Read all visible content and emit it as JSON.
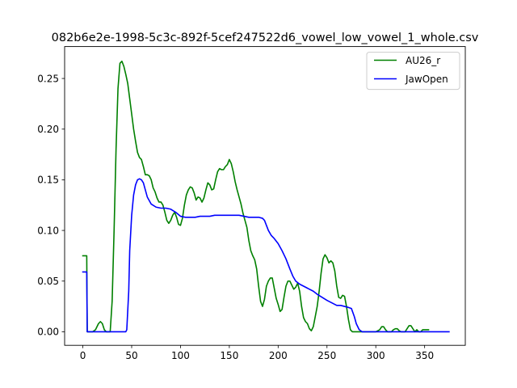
{
  "chart_data": {
    "type": "line",
    "title": "082b6e2e-1998-5c3c-892f-5cef247522d6_vowel_low_vowel_1_whole.csv",
    "xlabel": "",
    "ylabel": "",
    "xlim": [
      -18.65,
      391.65
    ],
    "ylim": [
      -0.0134,
      0.2815
    ],
    "xticks": [
      0,
      50,
      100,
      150,
      200,
      250,
      300,
      350
    ],
    "yticks": [
      0.0,
      0.05,
      0.1,
      0.15,
      0.2,
      0.25
    ],
    "ytick_labels": [
      "0.00",
      "0.05",
      "0.10",
      "0.15",
      "0.20",
      "0.25"
    ],
    "grid": false,
    "legend_position": "top-right",
    "series": [
      {
        "name": "AU26_r",
        "color": "#008000",
        "points": [
          [
            0,
            0.075
          ],
          [
            4,
            0.075
          ],
          [
            4.5,
            0.0
          ],
          [
            10,
            0.0
          ],
          [
            13,
            0.002
          ],
          [
            16,
            0.008
          ],
          [
            18,
            0.01
          ],
          [
            20,
            0.008
          ],
          [
            22,
            0.002
          ],
          [
            24,
            0.0
          ],
          [
            28,
            0.0
          ],
          [
            30,
            0.03
          ],
          [
            32,
            0.1
          ],
          [
            34,
            0.18
          ],
          [
            36,
            0.24
          ],
          [
            38,
            0.265
          ],
          [
            40,
            0.267
          ],
          [
            42,
            0.262
          ],
          [
            44,
            0.254
          ],
          [
            46,
            0.245
          ],
          [
            48,
            0.23
          ],
          [
            50,
            0.215
          ],
          [
            52,
            0.2
          ],
          [
            54,
            0.188
          ],
          [
            56,
            0.177
          ],
          [
            58,
            0.172
          ],
          [
            60,
            0.17
          ],
          [
            62,
            0.163
          ],
          [
            64,
            0.155
          ],
          [
            66,
            0.155
          ],
          [
            68,
            0.154
          ],
          [
            70,
            0.15
          ],
          [
            72,
            0.142
          ],
          [
            74,
            0.138
          ],
          [
            76,
            0.132
          ],
          [
            78,
            0.128
          ],
          [
            80,
            0.128
          ],
          [
            82,
            0.125
          ],
          [
            84,
            0.118
          ],
          [
            86,
            0.11
          ],
          [
            88,
            0.107
          ],
          [
            90,
            0.11
          ],
          [
            92,
            0.115
          ],
          [
            94,
            0.118
          ],
          [
            96,
            0.113
          ],
          [
            98,
            0.106
          ],
          [
            100,
            0.105
          ],
          [
            102,
            0.112
          ],
          [
            104,
            0.125
          ],
          [
            106,
            0.135
          ],
          [
            108,
            0.14
          ],
          [
            110,
            0.143
          ],
          [
            112,
            0.142
          ],
          [
            114,
            0.137
          ],
          [
            116,
            0.13
          ],
          [
            118,
            0.133
          ],
          [
            120,
            0.132
          ],
          [
            122,
            0.128
          ],
          [
            124,
            0.132
          ],
          [
            126,
            0.14
          ],
          [
            128,
            0.147
          ],
          [
            130,
            0.145
          ],
          [
            132,
            0.14
          ],
          [
            134,
            0.141
          ],
          [
            136,
            0.15
          ],
          [
            138,
            0.158
          ],
          [
            140,
            0.161
          ],
          [
            142,
            0.16
          ],
          [
            144,
            0.16
          ],
          [
            146,
            0.163
          ],
          [
            148,
            0.165
          ],
          [
            150,
            0.17
          ],
          [
            152,
            0.166
          ],
          [
            154,
            0.158
          ],
          [
            156,
            0.148
          ],
          [
            158,
            0.14
          ],
          [
            160,
            0.133
          ],
          [
            162,
            0.126
          ],
          [
            164,
            0.117
          ],
          [
            166,
            0.11
          ],
          [
            168,
            0.103
          ],
          [
            170,
            0.09
          ],
          [
            172,
            0.08
          ],
          [
            174,
            0.075
          ],
          [
            176,
            0.071
          ],
          [
            178,
            0.062
          ],
          [
            180,
            0.045
          ],
          [
            182,
            0.03
          ],
          [
            184,
            0.025
          ],
          [
            186,
            0.032
          ],
          [
            188,
            0.045
          ],
          [
            190,
            0.05
          ],
          [
            192,
            0.053
          ],
          [
            194,
            0.053
          ],
          [
            196,
            0.043
          ],
          [
            198,
            0.033
          ],
          [
            200,
            0.027
          ],
          [
            202,
            0.02
          ],
          [
            204,
            0.022
          ],
          [
            206,
            0.034
          ],
          [
            208,
            0.045
          ],
          [
            210,
            0.05
          ],
          [
            212,
            0.05
          ],
          [
            214,
            0.046
          ],
          [
            216,
            0.042
          ],
          [
            218,
            0.044
          ],
          [
            220,
            0.048
          ],
          [
            222,
            0.04
          ],
          [
            224,
            0.025
          ],
          [
            226,
            0.014
          ],
          [
            228,
            0.01
          ],
          [
            230,
            0.008
          ],
          [
            232,
            0.003
          ],
          [
            234,
            0.001
          ],
          [
            236,
            0.005
          ],
          [
            238,
            0.015
          ],
          [
            240,
            0.025
          ],
          [
            242,
            0.04
          ],
          [
            244,
            0.058
          ],
          [
            246,
            0.072
          ],
          [
            248,
            0.076
          ],
          [
            250,
            0.073
          ],
          [
            252,
            0.068
          ],
          [
            254,
            0.07
          ],
          [
            256,
            0.068
          ],
          [
            258,
            0.06
          ],
          [
            260,
            0.045
          ],
          [
            262,
            0.034
          ],
          [
            264,
            0.033
          ],
          [
            266,
            0.036
          ],
          [
            268,
            0.035
          ],
          [
            270,
            0.025
          ],
          [
            272,
            0.012
          ],
          [
            274,
            0.002
          ],
          [
            276,
            0.0
          ],
          [
            300,
            0.0
          ],
          [
            304,
            0.002
          ],
          [
            306,
            0.005
          ],
          [
            308,
            0.005
          ],
          [
            310,
            0.002
          ],
          [
            312,
            0.0
          ],
          [
            316,
            0.0
          ],
          [
            318,
            0.002
          ],
          [
            320,
            0.003
          ],
          [
            322,
            0.003
          ],
          [
            324,
            0.001
          ],
          [
            326,
            0.0
          ],
          [
            330,
            0.0
          ],
          [
            332,
            0.003
          ],
          [
            334,
            0.006
          ],
          [
            336,
            0.006
          ],
          [
            338,
            0.003
          ],
          [
            340,
            0.0
          ],
          [
            342,
            0.002
          ],
          [
            344,
            0.0
          ],
          [
            346,
            0.0
          ],
          [
            348,
            0.002
          ],
          [
            350,
            0.002
          ],
          [
            354,
            0.002
          ]
        ]
      },
      {
        "name": "JawOpen",
        "color": "#0000ff",
        "points": [
          [
            0,
            0.059
          ],
          [
            4,
            0.059
          ],
          [
            4.5,
            0.0
          ],
          [
            44,
            0.0
          ],
          [
            45,
            0.002
          ],
          [
            47,
            0.04
          ],
          [
            48,
            0.08
          ],
          [
            50,
            0.115
          ],
          [
            52,
            0.135
          ],
          [
            54,
            0.145
          ],
          [
            56,
            0.15
          ],
          [
            58,
            0.151
          ],
          [
            60,
            0.15
          ],
          [
            62,
            0.147
          ],
          [
            64,
            0.14
          ],
          [
            66,
            0.133
          ],
          [
            70,
            0.126
          ],
          [
            75,
            0.123
          ],
          [
            80,
            0.122
          ],
          [
            85,
            0.122
          ],
          [
            90,
            0.121
          ],
          [
            95,
            0.118
          ],
          [
            100,
            0.114
          ],
          [
            105,
            0.113
          ],
          [
            110,
            0.113
          ],
          [
            115,
            0.113
          ],
          [
            120,
            0.114
          ],
          [
            125,
            0.114
          ],
          [
            130,
            0.114
          ],
          [
            135,
            0.115
          ],
          [
            140,
            0.115
          ],
          [
            150,
            0.115
          ],
          [
            160,
            0.115
          ],
          [
            165,
            0.114
          ],
          [
            170,
            0.113
          ],
          [
            175,
            0.113
          ],
          [
            180,
            0.113
          ],
          [
            184,
            0.112
          ],
          [
            186,
            0.11
          ],
          [
            188,
            0.105
          ],
          [
            190,
            0.1
          ],
          [
            193,
            0.095
          ],
          [
            196,
            0.092
          ],
          [
            200,
            0.087
          ],
          [
            204,
            0.08
          ],
          [
            208,
            0.072
          ],
          [
            212,
            0.062
          ],
          [
            215,
            0.055
          ],
          [
            218,
            0.05
          ],
          [
            222,
            0.047
          ],
          [
            226,
            0.045
          ],
          [
            230,
            0.043
          ],
          [
            236,
            0.04
          ],
          [
            240,
            0.037
          ],
          [
            245,
            0.034
          ],
          [
            250,
            0.031
          ],
          [
            256,
            0.028
          ],
          [
            260,
            0.026
          ],
          [
            264,
            0.026
          ],
          [
            268,
            0.025
          ],
          [
            272,
            0.024
          ],
          [
            275,
            0.023
          ],
          [
            278,
            0.015
          ],
          [
            280,
            0.008
          ],
          [
            283,
            0.002
          ],
          [
            286,
            0.0
          ],
          [
            375,
            0.0
          ]
        ]
      }
    ]
  }
}
